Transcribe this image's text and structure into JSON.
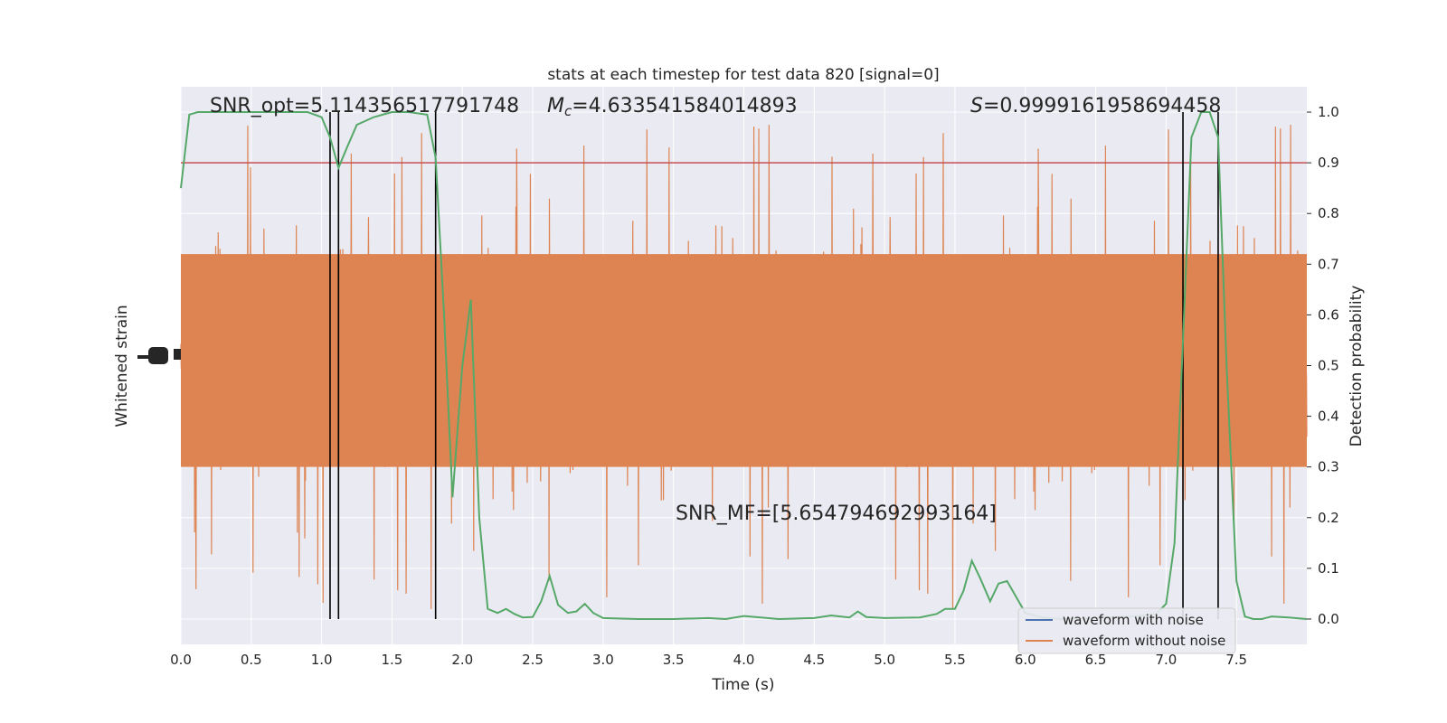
{
  "chart_data": {
    "type": "line",
    "title": "stats at each timestep for test data 820 [signal=0]",
    "xlabel": "Time (s)",
    "ylabel_left": "Whitened strain",
    "ylabel_right": "Detection probability",
    "xlim": [
      0.0,
      8.0
    ],
    "ylim_right": [
      -0.05,
      1.05
    ],
    "x_ticks": [
      "0.0",
      "0.5",
      "1.0",
      "1.5",
      "2.0",
      "2.5",
      "3.0",
      "3.5",
      "4.0",
      "4.5",
      "5.0",
      "5.5",
      "6.0",
      "6.5",
      "7.0",
      "7.5"
    ],
    "y_ticks_right": [
      "0.0",
      "0.1",
      "0.2",
      "0.3",
      "0.4",
      "0.5",
      "0.6",
      "0.7",
      "0.8",
      "0.9",
      "1.0"
    ],
    "grid": true,
    "background_color": "#eaeaf2",
    "annotations": {
      "snr_opt": "SNR_opt=5.114356517791748",
      "mc_symbol": "M",
      "mc_sub": "c",
      "mc_value": "=4.633541584014893",
      "s_symbol": "S",
      "s_value": "=0.9999161958694458",
      "snr_mf": "SNR_MF=[5.654794692993164]"
    },
    "threshold": {
      "value": 0.9,
      "color": "#c44e52"
    },
    "vertical_lines_x": [
      1.06,
      1.12,
      1.81,
      7.12,
      7.37
    ],
    "legend": {
      "placement": "lower-right",
      "entries": [
        {
          "label": "waveform with noise",
          "color": "#4c72b0"
        },
        {
          "label": "waveform without noise",
          "color": "#dd8452"
        }
      ]
    },
    "series": [
      {
        "name": "waveform without noise",
        "color": "#dd8452",
        "kind": "noise",
        "band_core": [
          0.3,
          0.72
        ],
        "spike_range": [
          0.0,
          1.0
        ]
      },
      {
        "name": "",
        "color": "#55a868",
        "x": [
          0.0,
          0.06,
          0.12,
          0.25,
          0.5,
          0.75,
          0.9,
          1.0,
          1.06,
          1.12,
          1.18,
          1.25,
          1.37,
          1.5,
          1.62,
          1.75,
          1.81,
          1.87,
          1.93,
          2.0,
          2.06,
          2.12,
          2.18,
          2.25,
          2.31,
          2.37,
          2.43,
          2.5,
          2.56,
          2.62,
          2.68,
          2.75,
          2.81,
          2.87,
          2.93,
          3.0,
          3.25,
          3.5,
          3.75,
          3.87,
          4.0,
          4.25,
          4.5,
          4.62,
          4.75,
          4.81,
          4.87,
          5.0,
          5.25,
          5.37,
          5.43,
          5.5,
          5.56,
          5.62,
          5.68,
          5.75,
          5.81,
          5.87,
          6.0,
          6.12,
          6.25,
          6.5,
          6.75,
          6.93,
          7.0,
          7.06,
          7.12,
          7.18,
          7.25,
          7.31,
          7.37,
          7.43,
          7.5,
          7.56,
          7.62,
          7.68,
          7.75,
          7.87,
          8.0
        ],
        "y": [
          0.85,
          0.995,
          1.0,
          1.0,
          1.0,
          1.0,
          1.0,
          0.99,
          0.95,
          0.89,
          0.93,
          0.975,
          0.99,
          1.0,
          1.0,
          0.995,
          0.91,
          0.6,
          0.24,
          0.5,
          0.63,
          0.2,
          0.02,
          0.012,
          0.02,
          0.01,
          0.003,
          0.004,
          0.035,
          0.085,
          0.028,
          0.012,
          0.015,
          0.03,
          0.012,
          0.002,
          0.0,
          0.0,
          0.002,
          0.0,
          0.006,
          0.0,
          0.002,
          0.007,
          0.003,
          0.015,
          0.004,
          0.002,
          0.003,
          0.01,
          0.02,
          0.02,
          0.055,
          0.115,
          0.08,
          0.035,
          0.07,
          0.075,
          0.012,
          0.003,
          0.0,
          0.002,
          0.005,
          0.01,
          0.03,
          0.15,
          0.55,
          0.95,
          1.0,
          1.0,
          0.95,
          0.5,
          0.075,
          0.005,
          0.0,
          0.0,
          0.005,
          0.003,
          0.0
        ]
      }
    ]
  }
}
